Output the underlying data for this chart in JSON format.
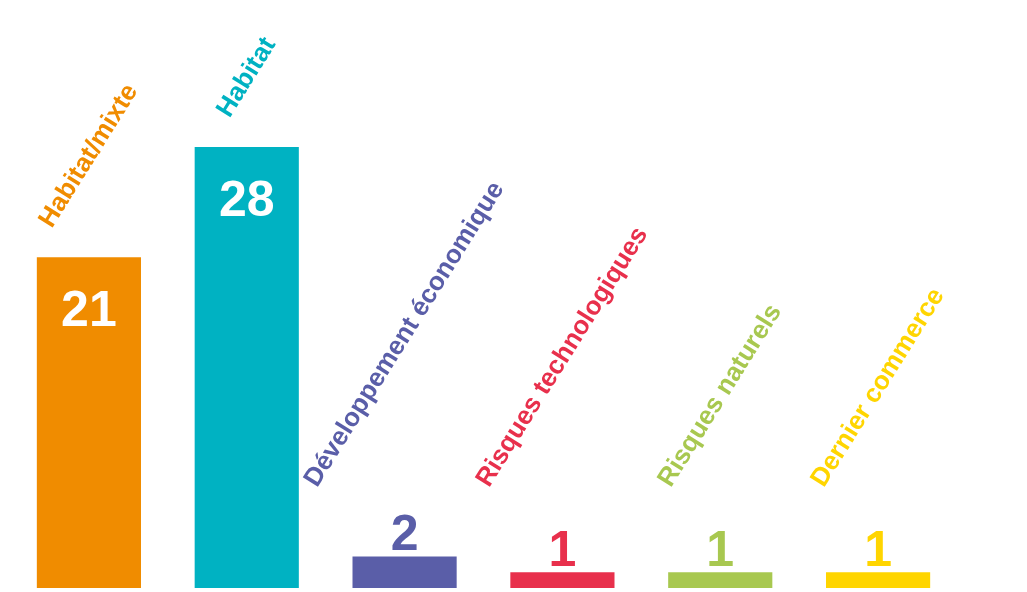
{
  "chart_data": {
    "type": "bar",
    "categories": [
      "Habitat/mixte",
      "Habitat",
      "Développement économique",
      "Risques technologiques",
      "Risques naturels",
      "Dernier commerce"
    ],
    "values": [
      21,
      28,
      2,
      1,
      1,
      1
    ],
    "colors": [
      "#f08c00",
      "#00b2c2",
      "#5a5ea8",
      "#e8304c",
      "#a8c850",
      "#ffd500"
    ],
    "data_labels": true
  }
}
